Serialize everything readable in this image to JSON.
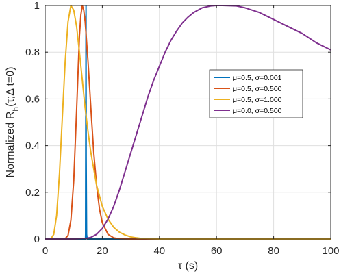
{
  "chart_data": {
    "type": "line",
    "xlabel": "τ (s)",
    "ylabel_main": "Normalized R",
    "ylabel_sub": "h",
    "ylabel_args": "(τ;Δ t=0)",
    "xlim": [
      0,
      100
    ],
    "ylim": [
      0,
      1
    ],
    "xticks": [
      0,
      20,
      40,
      60,
      80,
      100
    ],
    "yticks": [
      0,
      0.2,
      0.4,
      0.6,
      0.8,
      1
    ],
    "grid": true,
    "legend_position": "upper-right",
    "series": [
      {
        "name": "μ=0.5, σ=0.001",
        "color": "#0072BD",
        "x": [
          0,
          14.1,
          14.15,
          14.2,
          14.3,
          14.35,
          14.5,
          14.7,
          100
        ],
        "y": [
          0,
          0,
          0.02,
          0.35,
          1,
          0.35,
          0.02,
          0,
          0
        ]
      },
      {
        "name": "μ=0.5, σ=0.500",
        "color": "#D95319",
        "x": [
          0,
          5,
          7,
          8,
          9,
          10,
          11,
          12,
          12.5,
          13,
          13.5,
          14,
          15,
          16,
          17,
          18,
          19,
          20,
          22,
          24,
          26,
          30,
          100
        ],
        "y": [
          0,
          0,
          0.002,
          0.015,
          0.08,
          0.25,
          0.55,
          0.87,
          0.96,
          1.0,
          0.98,
          0.93,
          0.76,
          0.56,
          0.37,
          0.23,
          0.13,
          0.07,
          0.02,
          0.005,
          0.001,
          0,
          0
        ]
      },
      {
        "name": "μ=0.5, σ=1.000",
        "color": "#EDB120",
        "x": [
          0,
          1,
          2,
          3,
          4,
          5,
          6,
          7,
          8,
          9,
          10,
          11,
          12,
          13,
          14,
          15,
          16,
          18,
          20,
          22,
          24,
          26,
          28,
          30,
          32,
          34,
          36,
          40,
          100
        ],
        "y": [
          0,
          0,
          0.001,
          0.02,
          0.1,
          0.28,
          0.52,
          0.76,
          0.93,
          1.0,
          0.98,
          0.91,
          0.8,
          0.68,
          0.56,
          0.46,
          0.37,
          0.23,
          0.14,
          0.085,
          0.05,
          0.029,
          0.017,
          0.009,
          0.005,
          0.002,
          0.001,
          0,
          0
        ]
      },
      {
        "name": "μ=0.0, σ=0.500",
        "color": "#7E2F8E",
        "x": [
          0,
          10,
          14,
          16,
          18,
          20,
          22,
          24,
          26,
          28,
          30,
          32,
          34,
          36,
          38,
          40,
          42,
          44,
          46,
          48,
          50,
          52,
          55,
          58,
          60,
          62,
          65,
          67,
          70,
          75,
          80,
          85,
          90,
          95,
          100
        ],
        "y": [
          0,
          0,
          0.002,
          0.007,
          0.02,
          0.045,
          0.085,
          0.14,
          0.21,
          0.29,
          0.37,
          0.45,
          0.53,
          0.61,
          0.68,
          0.74,
          0.8,
          0.85,
          0.89,
          0.925,
          0.95,
          0.97,
          0.99,
          0.998,
          1.0,
          1.0,
          0.999,
          0.998,
          0.99,
          0.97,
          0.94,
          0.91,
          0.88,
          0.84,
          0.81
        ]
      }
    ]
  }
}
